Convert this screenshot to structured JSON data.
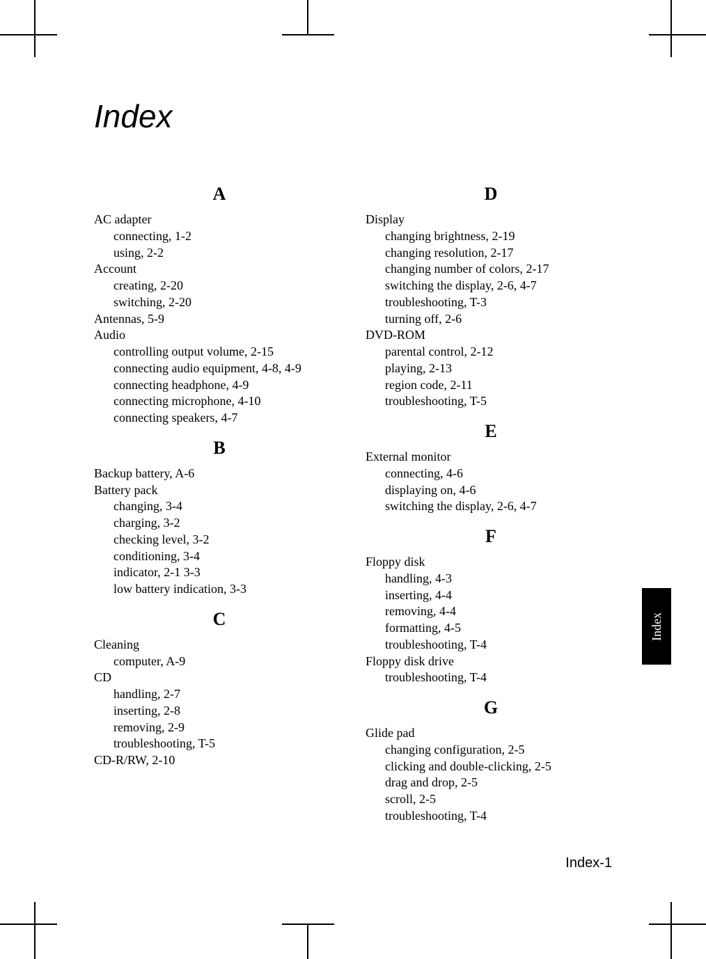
{
  "title": "Index",
  "footer": "Index-1",
  "sideTab": "Index",
  "leftColumn": {
    "sections": [
      {
        "letter": "A",
        "items": [
          {
            "head": "AC adapter",
            "subs": [
              "connecting, 1-2",
              "using, 2-2"
            ]
          },
          {
            "head": "Account",
            "subs": [
              "creating, 2-20",
              "switching, 2-20"
            ]
          },
          {
            "head": "Antennas, 5-9",
            "subs": []
          },
          {
            "head": "Audio",
            "subs": [
              "controlling output volume, 2-15",
              "connecting audio equipment, 4-8, 4-9",
              "connecting headphone, 4-9",
              "connecting microphone, 4-10",
              "connecting speakers, 4-7"
            ]
          }
        ]
      },
      {
        "letter": "B",
        "items": [
          {
            "head": "Backup battery, A-6",
            "subs": []
          },
          {
            "head": "Battery pack",
            "subs": [
              "changing, 3-4",
              "charging, 3-2",
              "checking level, 3-2",
              "conditioning, 3-4",
              "indicator, 2-1 3-3",
              "low battery indication, 3-3"
            ]
          }
        ]
      },
      {
        "letter": "C",
        "items": [
          {
            "head": "Cleaning",
            "subs": [
              "computer, A-9"
            ]
          },
          {
            "head": "CD",
            "subs": [
              "handling, 2-7",
              "inserting, 2-8",
              "removing, 2-9",
              "troubleshooting, T-5"
            ]
          },
          {
            "head": "CD-R/RW, 2-10",
            "subs": []
          }
        ]
      }
    ]
  },
  "rightColumn": {
    "sections": [
      {
        "letter": "D",
        "items": [
          {
            "head": "Display",
            "subs": [
              "changing brightness, 2-19",
              "changing resolution, 2-17",
              "changing number of colors, 2-17",
              "switching the display, 2-6, 4-7",
              "troubleshooting, T-3",
              "turning off, 2-6"
            ]
          },
          {
            "head": "DVD-ROM",
            "subs": [
              "parental control, 2-12",
              "playing, 2-13",
              "region code, 2-11",
              "troubleshooting, T-5"
            ]
          }
        ]
      },
      {
        "letter": "E",
        "items": [
          {
            "head": "External monitor",
            "subs": [
              "connecting, 4-6",
              "displaying on, 4-6",
              "switching the display, 2-6, 4-7"
            ]
          }
        ]
      },
      {
        "letter": "F",
        "items": [
          {
            "head": "Floppy disk",
            "subs": [
              "handling, 4-3",
              "inserting, 4-4",
              "removing, 4-4",
              "formatting, 4-5",
              "troubleshooting, T-4"
            ]
          },
          {
            "head": "Floppy disk drive",
            "subs": [
              "troubleshooting, T-4"
            ]
          }
        ]
      },
      {
        "letter": "G",
        "items": [
          {
            "head": "Glide pad",
            "subs": [
              "changing configuration, 2-5",
              "clicking and double-clicking, 2-5",
              "drag and drop, 2-5",
              "scroll, 2-5",
              "troubleshooting, T-4"
            ]
          }
        ]
      }
    ]
  },
  "colors": {
    "text": "#000000",
    "background": "#ffffff",
    "tabBg": "#000000",
    "tabText": "#ffffff"
  },
  "fonts": {
    "body": "Times New Roman",
    "title": "Arial",
    "bodySize": 18,
    "titleSize": 46,
    "letterSize": 26,
    "footerSize": 20
  }
}
